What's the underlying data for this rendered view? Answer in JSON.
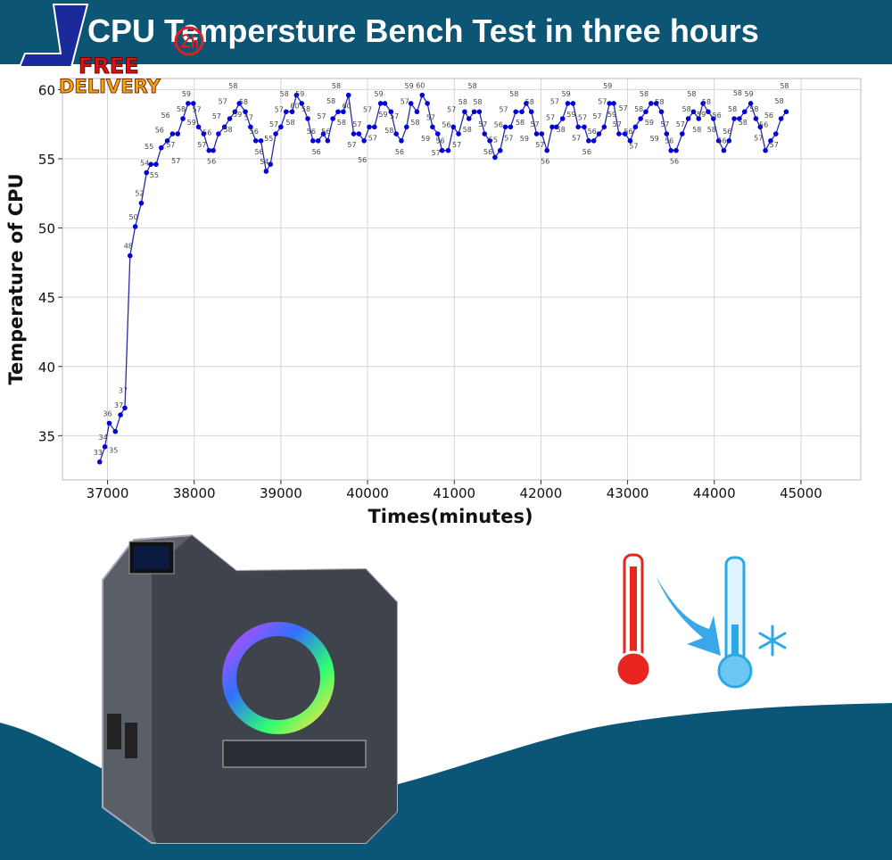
{
  "header": {
    "title": "CPU Tempersture Bench Test in three hours"
  },
  "badges": {
    "logo_letter": "J",
    "free": "FREE",
    "delivery": "DELIVERY",
    "hours": "24h"
  },
  "colors": {
    "header": "#0d5575",
    "series": "#0000dd",
    "wave": "#0b5677",
    "hot": "#e8251f",
    "cold": "#2aa8e8"
  },
  "chart_data": {
    "type": "line",
    "title": "CPU Tempersture Bench Test in three hours",
    "xlabel": "Times(minutes)",
    "ylabel": "Temperature of CPU",
    "xlim": [
      36480,
      45690
    ],
    "ylim": [
      31.8,
      60.8
    ],
    "xticks": [
      37000,
      38000,
      39000,
      40000,
      41000,
      42000,
      43000,
      44000,
      45000
    ],
    "yticks": [
      35,
      40,
      45,
      50,
      55,
      60
    ],
    "grid": true,
    "data_labels": true,
    "x": [
      36910,
      36970,
      37020,
      37090,
      37150,
      37200,
      37260,
      37320,
      37390,
      37450,
      37500,
      37560,
      37620,
      37690,
      37750,
      37810,
      37870,
      37930,
      37990,
      38050,
      38110,
      38170,
      38220,
      38280,
      38350,
      38410,
      38470,
      38520,
      38590,
      38650,
      38710,
      38770,
      38830,
      38880,
      38940,
      39000,
      39060,
      39130,
      39180,
      39240,
      39310,
      39370,
      39430,
      39490,
      39540,
      39600,
      39660,
      39720,
      39780,
      39840,
      39900,
      39960,
      40020,
      40080,
      40150,
      40200,
      40270,
      40330,
      40390,
      40450,
      40500,
      40570,
      40630,
      40690,
      40750,
      40810,
      40860,
      40930,
      40990,
      41050,
      41120,
      41170,
      41230,
      41290,
      41350,
      41410,
      41470,
      41530,
      41590,
      41650,
      41710,
      41780,
      41830,
      41890,
      41950,
      42010,
      42070,
      42130,
      42180,
      42250,
      42310,
      42370,
      42430,
      42500,
      42550,
      42610,
      42670,
      42730,
      42790,
      42840,
      42900,
      42970,
      43030,
      43090,
      43150,
      43210,
      43270,
      43330,
      43390,
      43450,
      43500,
      43560,
      43630,
      43700,
      43760,
      43820,
      43870,
      43930,
      43990,
      44050,
      44110,
      44170,
      44230,
      44290,
      44350,
      44420,
      44480,
      44530,
      44590,
      44650,
      44710,
      44770,
      44830
    ],
    "y": [
      33.1,
      34.2,
      35.9,
      35.3,
      36.5,
      37.0,
      48.0,
      50.1,
      51.8,
      54.0,
      54.6,
      54.6,
      55.8,
      56.3,
      56.8,
      56.8,
      57.9,
      59,
      59,
      57.3,
      56.8,
      55.6,
      55.6,
      56.8,
      57.3,
      57.9,
      58.4,
      59,
      58.4,
      57.3,
      56.3,
      56.3,
      54.1,
      54.6,
      56.8,
      57.3,
      58.4,
      58.4,
      59.6,
      59,
      57.9,
      56.3,
      56.3,
      56.8,
      56.3,
      57.9,
      58.4,
      58.4,
      59.6,
      56.8,
      56.8,
      56.3,
      57.3,
      57.3,
      59,
      59,
      58.4,
      56.8,
      56.3,
      57.3,
      59,
      58.4,
      59.6,
      59,
      57.3,
      56.8,
      55.6,
      55.6,
      57.3,
      56.8,
      58.4,
      57.9,
      58.4,
      58.4,
      56.8,
      56.3,
      55.1,
      55.6,
      57.3,
      57.3,
      58.4,
      58.4,
      59,
      58.4,
      56.8,
      56.8,
      55.6,
      57.3,
      57.3,
      57.9,
      59,
      59,
      57.3,
      57.3,
      56.3,
      56.3,
      56.8,
      57.3,
      59,
      59,
      56.8,
      56.8,
      56.3,
      57.3,
      57.9,
      58.4,
      59,
      59,
      58.4,
      56.8,
      55.6,
      55.6,
      56.8,
      57.9,
      58.4,
      57.9,
      59,
      58.4,
      57.9,
      56.3,
      55.6,
      56.3,
      57.9,
      57.9,
      58.4,
      59,
      57.9,
      57.3,
      55.6,
      56.3,
      56.8,
      57.9,
      58.4
    ]
  }
}
